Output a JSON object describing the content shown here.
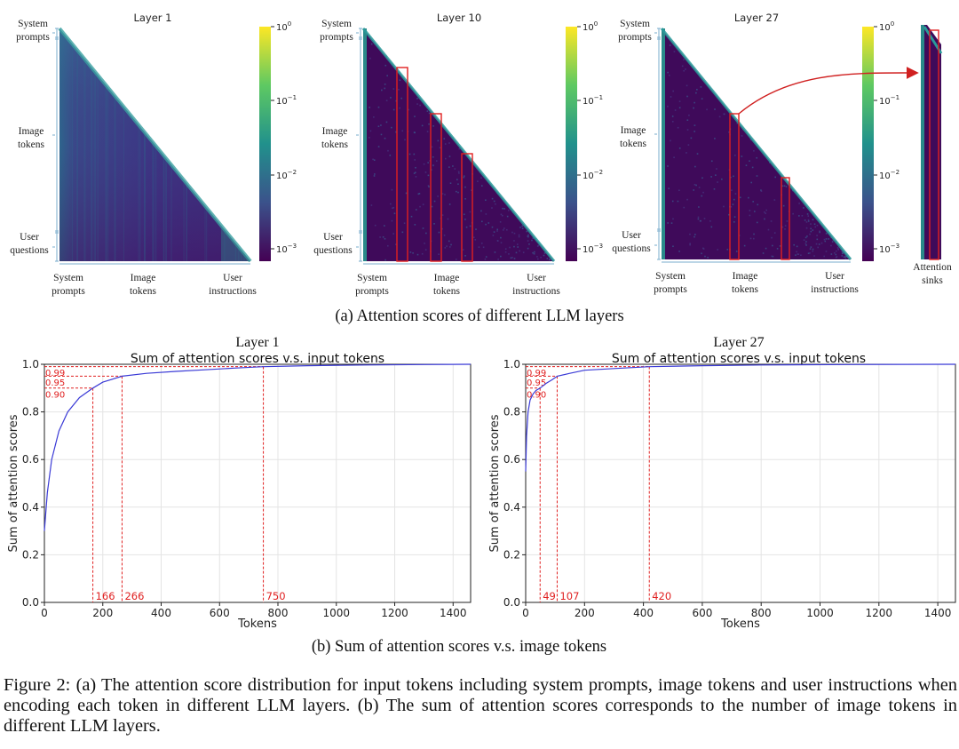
{
  "heatmaps": {
    "panels": [
      {
        "title": "Layer 1"
      },
      {
        "title": "Layer 10"
      },
      {
        "title": "Layer 27"
      }
    ],
    "y_labels": [
      {
        "line1": "System",
        "line2": "prompts"
      },
      {
        "line1": "Image",
        "line2": "tokens"
      },
      {
        "line1": "User",
        "line2": "questions"
      }
    ],
    "x_labels": [
      {
        "line1": "System",
        "line2": "prompts"
      },
      {
        "line1": "Image",
        "line2": "tokens"
      },
      {
        "line1": "User",
        "line2": "instructions"
      }
    ],
    "colorbar_ticks": [
      "10^0",
      "10^-1",
      "10^-2",
      "10^-3"
    ],
    "sink_label": {
      "line1": "Attention",
      "line2": "sinks"
    },
    "highlight_color": "#e02020",
    "colormap": [
      "#440154",
      "#3b528b",
      "#21918c",
      "#5ec962",
      "#fde725"
    ],
    "subcaption": "(a) Attention scores of different LLM layers"
  },
  "line_charts": {
    "subcaption": "(b) Sum of attention scores v.s. image tokens"
  },
  "chart_data": [
    {
      "type": "line",
      "panel_title": "Layer 1",
      "title": "Sum of attention scores v.s. input tokens",
      "xlabel": "Tokens",
      "ylabel": "Sum of attention scores",
      "xlim": [
        0,
        1460
      ],
      "ylim": [
        0,
        1.0
      ],
      "xticks": [
        0,
        200,
        400,
        600,
        800,
        1000,
        1200,
        1400
      ],
      "yticks": [
        0.0,
        0.2,
        0.4,
        0.6,
        0.8,
        1.0
      ],
      "grid": true,
      "line_color": "#3b3bd6",
      "series": [
        {
          "x": [
            0,
            10,
            25,
            50,
            80,
            120,
            166,
            200,
            266,
            350,
            450,
            550,
            650,
            750,
            900,
            1100,
            1300,
            1460
          ],
          "y": [
            0.3,
            0.46,
            0.6,
            0.72,
            0.8,
            0.86,
            0.9,
            0.925,
            0.95,
            0.962,
            0.97,
            0.977,
            0.984,
            0.99,
            0.994,
            0.997,
            0.999,
            1.0
          ]
        }
      ],
      "thresholds": [
        {
          "level": "0.90",
          "tokens": "166"
        },
        {
          "level": "0.95",
          "tokens": "266"
        },
        {
          "level": "0.99",
          "tokens": "750"
        }
      ]
    },
    {
      "type": "line",
      "panel_title": "Layer 27",
      "title": "Sum of attention scores v.s. input tokens",
      "xlabel": "Tokens",
      "ylabel": "Sum of attention scores",
      "xlim": [
        0,
        1460
      ],
      "ylim": [
        0,
        1.0
      ],
      "xticks": [
        0,
        200,
        400,
        600,
        800,
        1000,
        1200,
        1400
      ],
      "yticks": [
        0.0,
        0.2,
        0.4,
        0.6,
        0.8,
        1.0
      ],
      "grid": true,
      "line_color": "#3b3bd6",
      "series": [
        {
          "x": [
            0,
            3,
            8,
            15,
            25,
            35,
            49,
            70,
            90,
            107,
            150,
            200,
            300,
            420,
            600,
            800,
            1100,
            1460
          ],
          "y": [
            0.55,
            0.7,
            0.8,
            0.85,
            0.875,
            0.89,
            0.9,
            0.92,
            0.935,
            0.95,
            0.962,
            0.975,
            0.982,
            0.99,
            0.994,
            0.997,
            0.999,
            1.0
          ]
        }
      ],
      "thresholds": [
        {
          "level": "0.90",
          "tokens": "49"
        },
        {
          "level": "0.95",
          "tokens": "107"
        },
        {
          "level": "0.99",
          "tokens": "420"
        }
      ]
    }
  ],
  "caption": "Figure 2: (a) The attention score distribution for input tokens including system prompts, image tokens and user instructions when encoding each token in different LLM layers. (b) The sum of attention scores corresponds to the number of image tokens in different LLM layers."
}
